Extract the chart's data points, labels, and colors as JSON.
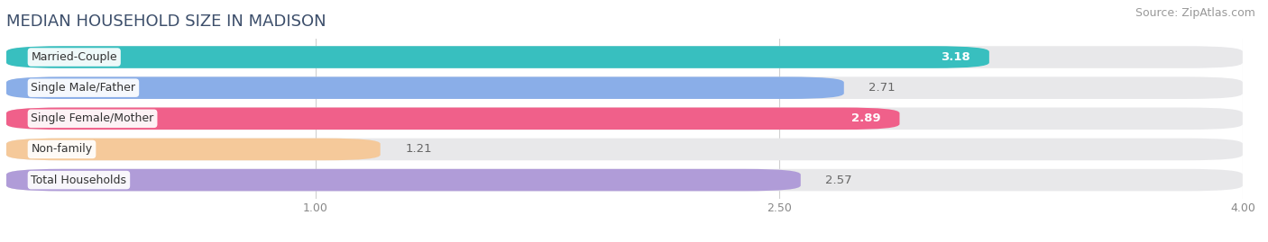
{
  "title": "MEDIAN HOUSEHOLD SIZE IN MADISON",
  "source": "Source: ZipAtlas.com",
  "categories": [
    "Married-Couple",
    "Single Male/Father",
    "Single Female/Mother",
    "Non-family",
    "Total Households"
  ],
  "values": [
    3.18,
    2.71,
    2.89,
    1.21,
    2.57
  ],
  "bar_colors": [
    "#38bfbf",
    "#8aaee8",
    "#f0608a",
    "#f5c99a",
    "#b09cd8"
  ],
  "bar_bg_color": "#e8e8ea",
  "value_label_colors": [
    "#ffffff",
    "#666666",
    "#ffffff",
    "#666666",
    "#666666"
  ],
  "value_label_inside": [
    true,
    false,
    true,
    false,
    false
  ],
  "xlim_start": 0.0,
  "xlim_end": 4.0,
  "xmin": 0.0,
  "xticks": [
    1.0,
    2.5,
    4.0
  ],
  "background_color": "#ffffff",
  "title_color": "#3d4f6b",
  "title_fontsize": 13,
  "source_fontsize": 9,
  "bar_label_fontsize": 9.5,
  "cat_label_fontsize": 9
}
